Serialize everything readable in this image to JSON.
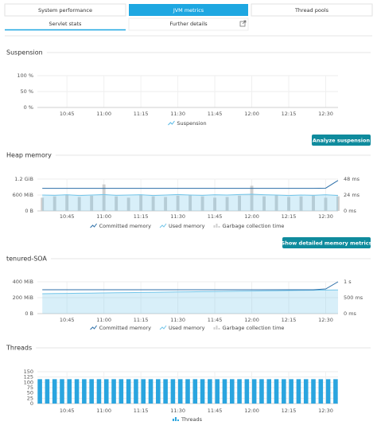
{
  "tabs": [
    "System performance",
    "JVM metrics",
    "Thread pools"
  ],
  "subtabs": [
    "Servlet stats",
    "Further details"
  ],
  "buttons": [
    "Analyze suspension",
    "Show detailed memory metrics"
  ],
  "chart_data": [
    {
      "type": "line",
      "title": "Suspension",
      "xlim": [
        633,
        755
      ],
      "xticks": [
        {
          "value": 645,
          "label": "10:45"
        },
        {
          "value": 660,
          "label": "11:00"
        },
        {
          "value": 675,
          "label": "11:15"
        },
        {
          "value": 690,
          "label": "11:30"
        },
        {
          "value": 705,
          "label": "11:45"
        },
        {
          "value": 720,
          "label": "12:00"
        },
        {
          "value": 735,
          "label": "12:15"
        },
        {
          "value": 750,
          "label": "12:30"
        }
      ],
      "ylim": [
        0,
        100
      ],
      "yticks": [
        {
          "value": 0,
          "label": "0 %"
        },
        {
          "value": 50,
          "label": "50 %"
        },
        {
          "value": 100,
          "label": "100 %"
        }
      ],
      "x": [],
      "series": [
        {
          "name": "Suspension",
          "type": "line",
          "color": "#57b9e6",
          "values": []
        }
      ]
    },
    {
      "type": "line",
      "title": "Heap memory",
      "xlim": [
        633,
        755
      ],
      "xticks": [
        {
          "value": 645,
          "label": "10:45"
        },
        {
          "value": 660,
          "label": "11:00"
        },
        {
          "value": 675,
          "label": "11:15"
        },
        {
          "value": 690,
          "label": "11:30"
        },
        {
          "value": 705,
          "label": "11:45"
        },
        {
          "value": 720,
          "label": "12:00"
        },
        {
          "value": 735,
          "label": "12:15"
        },
        {
          "value": 750,
          "label": "12:30"
        }
      ],
      "ylim": [
        0,
        1200
      ],
      "yticks": [
        {
          "value": 0,
          "label": "0 B"
        },
        {
          "value": 600,
          "label": "600 MiB"
        },
        {
          "value": 1200,
          "label": "1.2 GiB"
        }
      ],
      "y2lim": [
        0,
        48
      ],
      "y2ticks": [
        {
          "value": 0,
          "label": "0 ms"
        },
        {
          "value": 24,
          "label": "24 ms"
        },
        {
          "value": 48,
          "label": "48 ms"
        }
      ],
      "x": [
        635,
        640,
        645,
        650,
        655,
        660,
        665,
        670,
        675,
        680,
        685,
        690,
        695,
        700,
        705,
        710,
        715,
        720,
        725,
        730,
        735,
        740,
        745,
        750,
        755
      ],
      "series": [
        {
          "name": "Committed memory",
          "type": "line",
          "color": "#2c6fa8",
          "values": [
            850,
            850,
            850,
            850,
            850,
            850,
            850,
            850,
            850,
            850,
            850,
            850,
            850,
            850,
            850,
            850,
            850,
            850,
            850,
            850,
            850,
            850,
            850,
            860,
            1150
          ]
        },
        {
          "name": "Used memory",
          "type": "area",
          "color": "#74c6ea",
          "values": [
            600,
            590,
            610,
            580,
            600,
            620,
            590,
            600,
            610,
            580,
            600,
            620,
            600,
            590,
            610,
            600,
            620,
            630,
            610,
            600,
            580,
            600,
            590,
            610,
            580
          ]
        },
        {
          "name": "Garbage collection time",
          "type": "bar",
          "axis": "y2",
          "color": "#cfcfcf",
          "values": [
            20,
            22,
            24,
            21,
            23,
            40,
            22,
            20,
            24,
            22,
            21,
            23,
            24,
            22,
            20,
            21,
            23,
            38,
            22,
            24,
            21,
            22,
            23,
            20,
            22
          ]
        }
      ]
    },
    {
      "type": "line",
      "title": "tenured-SOA",
      "xlim": [
        633,
        755
      ],
      "xticks": [
        {
          "value": 645,
          "label": "10:45"
        },
        {
          "value": 660,
          "label": "11:00"
        },
        {
          "value": 675,
          "label": "11:15"
        },
        {
          "value": 690,
          "label": "11:30"
        },
        {
          "value": 705,
          "label": "11:45"
        },
        {
          "value": 720,
          "label": "12:00"
        },
        {
          "value": 735,
          "label": "12:15"
        },
        {
          "value": 750,
          "label": "12:30"
        }
      ],
      "ylim": [
        0,
        400
      ],
      "yticks": [
        {
          "value": 0,
          "label": "0 B"
        },
        {
          "value": 200,
          "label": "200 MiB"
        },
        {
          "value": 400,
          "label": "400 MiB"
        }
      ],
      "y2lim": [
        0,
        1000
      ],
      "y2ticks": [
        {
          "value": 0,
          "label": "0 ms"
        },
        {
          "value": 500,
          "label": "500 ms"
        },
        {
          "value": 1000,
          "label": "1 s"
        }
      ],
      "x": [
        635,
        640,
        645,
        650,
        655,
        660,
        665,
        670,
        675,
        680,
        685,
        690,
        695,
        700,
        705,
        710,
        715,
        720,
        725,
        730,
        735,
        740,
        745,
        750,
        755
      ],
      "series": [
        {
          "name": "Committed memory",
          "type": "line",
          "color": "#2c6fa8",
          "values": [
            300,
            300,
            300,
            300,
            300,
            300,
            300,
            300,
            300,
            300,
            300,
            300,
            300,
            300,
            300,
            300,
            300,
            300,
            300,
            300,
            300,
            300,
            300,
            310,
            400
          ]
        },
        {
          "name": "Used memory",
          "type": "area",
          "color": "#74c6ea",
          "values": [
            250,
            252,
            254,
            256,
            258,
            260,
            262,
            264,
            266,
            268,
            270,
            272,
            274,
            276,
            278,
            280,
            282,
            284,
            286,
            288,
            290,
            292,
            294,
            296,
            298
          ]
        },
        {
          "name": "Garbage collection time",
          "type": "bar",
          "axis": "y2",
          "color": "#cfcfcf",
          "values": [
            null,
            null,
            null,
            null,
            null,
            null,
            null,
            null,
            null,
            null,
            null,
            null,
            null,
            null,
            null,
            null,
            null,
            null,
            null,
            null,
            null,
            null,
            null,
            null,
            null
          ]
        }
      ]
    },
    {
      "type": "bar",
      "title": "Threads",
      "xlim": [
        633,
        755
      ],
      "xticks": [
        {
          "value": 645,
          "label": "10:45"
        },
        {
          "value": 660,
          "label": "11:00"
        },
        {
          "value": 675,
          "label": "11:15"
        },
        {
          "value": 690,
          "label": "11:30"
        },
        {
          "value": 705,
          "label": "11:45"
        },
        {
          "value": 720,
          "label": "12:00"
        },
        {
          "value": 735,
          "label": "12:15"
        },
        {
          "value": 750,
          "label": "12:30"
        }
      ],
      "ylim": [
        0,
        150
      ],
      "yticks": [
        0,
        25,
        50,
        75,
        100,
        125,
        150
      ],
      "x": [
        634,
        637,
        640,
        643,
        646,
        649,
        652,
        655,
        658,
        661,
        664,
        667,
        670,
        673,
        676,
        679,
        682,
        685,
        688,
        691,
        694,
        697,
        700,
        703,
        706,
        709,
        712,
        715,
        718,
        721,
        724,
        727,
        730,
        733,
        736,
        739,
        742,
        745,
        748,
        751,
        754
      ],
      "series": [
        {
          "name": "Threads",
          "type": "bar",
          "color": "#2aa5df",
          "values": [
            115,
            115,
            115,
            115,
            115,
            115,
            115,
            115,
            115,
            115,
            115,
            115,
            115,
            115,
            115,
            115,
            115,
            115,
            115,
            115,
            115,
            115,
            115,
            115,
            115,
            115,
            115,
            115,
            115,
            115,
            115,
            115,
            115,
            115,
            115,
            115,
            115,
            115,
            115,
            115,
            115
          ]
        }
      ]
    }
  ]
}
